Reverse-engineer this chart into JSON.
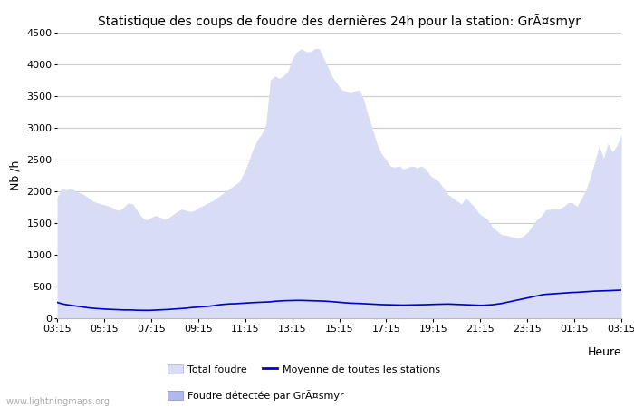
{
  "title": "Statistique des coups de foudre des dernières 24h pour la station: GrÃ¤smyr",
  "ylabel": "Nb /h",
  "xlabel_right": "Heure",
  "watermark": "www.lightningmaps.org",
  "xtick_labels": [
    "03:15",
    "05:15",
    "07:15",
    "09:15",
    "11:15",
    "13:15",
    "15:15",
    "17:15",
    "19:15",
    "21:15",
    "23:15",
    "01:15",
    "03:15"
  ],
  "ylim": [
    0,
    4500
  ],
  "yticks": [
    0,
    500,
    1000,
    1500,
    2000,
    2500,
    3000,
    3500,
    4000,
    4500
  ],
  "background_color": "#ffffff",
  "plot_bg_color": "#ffffff",
  "grid_color": "#cccccc",
  "total_foudre_color": "#d8dcf5",
  "foudre_detectee_color": "#b0b8ef",
  "moyenne_color": "#0000cc",
  "legend_total_label": "Total foudre",
  "legend_moyenne_label": "Moyenne de toutes les stations",
  "legend_detectee_label": "Foudre détectée par GrÃ¤smyr",
  "total_foudre_values": [
    1900,
    2050,
    2020,
    2050,
    2010,
    1980,
    1950,
    1900,
    1850,
    1820,
    1800,
    1780,
    1760,
    1720,
    1700,
    1750,
    1820,
    1800,
    1700,
    1600,
    1550,
    1580,
    1620,
    1600,
    1560,
    1580,
    1630,
    1680,
    1720,
    1700,
    1680,
    1700,
    1750,
    1780,
    1820,
    1850,
    1900,
    1950,
    2000,
    2050,
    2100,
    2150,
    2280,
    2450,
    2650,
    2800,
    2900,
    3050,
    3750,
    3820,
    3780,
    3820,
    3900,
    4100,
    4200,
    4250,
    4200,
    4200,
    4250,
    4250,
    4100,
    3950,
    3800,
    3700,
    3600,
    3580,
    3550,
    3580,
    3600,
    3450,
    3200,
    2980,
    2750,
    2600,
    2500,
    2400,
    2380,
    2400,
    2350,
    2380,
    2400,
    2370,
    2400,
    2350,
    2250,
    2200,
    2150,
    2050,
    1950,
    1900,
    1850,
    1800,
    1900,
    1820,
    1750,
    1650,
    1600,
    1550,
    1430,
    1380,
    1320,
    1310,
    1290,
    1280,
    1270,
    1300,
    1360,
    1460,
    1560,
    1610,
    1710,
    1720,
    1720,
    1720,
    1760,
    1820,
    1820,
    1760,
    1880,
    2020,
    2220,
    2460,
    2720,
    2520,
    2760,
    2620,
    2720,
    2900
  ],
  "moyenne_values": [
    250,
    230,
    215,
    205,
    195,
    185,
    175,
    165,
    158,
    152,
    147,
    143,
    140,
    137,
    133,
    131,
    130,
    130,
    126,
    125,
    124,
    125,
    128,
    130,
    133,
    138,
    143,
    148,
    153,
    158,
    166,
    172,
    178,
    183,
    188,
    196,
    207,
    216,
    222,
    227,
    228,
    232,
    237,
    242,
    246,
    249,
    251,
    254,
    258,
    267,
    272,
    276,
    278,
    280,
    281,
    281,
    279,
    278,
    276,
    273,
    270,
    266,
    260,
    254,
    248,
    243,
    238,
    236,
    233,
    230,
    226,
    222,
    218,
    215,
    213,
    210,
    208,
    208,
    207,
    209,
    210,
    211,
    213,
    214,
    217,
    219,
    221,
    224,
    224,
    221,
    217,
    214,
    211,
    209,
    207,
    204,
    204,
    208,
    213,
    222,
    232,
    247,
    262,
    277,
    292,
    307,
    322,
    337,
    352,
    367,
    377,
    382,
    387,
    392,
    398,
    402,
    406,
    408,
    413,
    418,
    423,
    427,
    429,
    431,
    434,
    437,
    439,
    443
  ],
  "n_points": 128
}
